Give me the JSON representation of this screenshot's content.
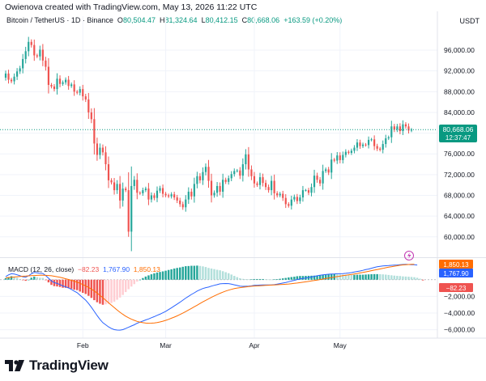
{
  "header": {
    "credit": "Owienova created with TradingView.com, May 13, 2026 11:22 UTC",
    "symbol": "Bitcoin / TetherUS · 1D · Binance",
    "o_label": "O",
    "o": "80,504.47",
    "h_label": "H",
    "h": "81,324.64",
    "l_label": "L",
    "l": "80,412.15",
    "c_label": "C",
    "c": "80,668.06",
    "change": "+163.59 (+0.20%)",
    "currency": "USDT"
  },
  "price_badge": {
    "price": "80,668.06",
    "countdown": "12:37:47"
  },
  "macd_legend": {
    "name": "MACD (12, 26, close)",
    "hist": "−82.23",
    "macd": "1,767.90",
    "signal": "1,850.13"
  },
  "macd_badges": {
    "signal": "1,850.13",
    "macd": "1,767.90",
    "hist": "−82.23"
  },
  "footer": {
    "brand": "TradingView"
  },
  "colors": {
    "up": "#26a69a",
    "down": "#ef5350",
    "macd": "#2962ff",
    "signal": "#ff6d00",
    "grid": "#f0f3fa",
    "last_price": "#089981"
  },
  "chart_data": [
    {
      "type": "candlestick",
      "title": "Bitcoin / TetherUS · 1D · Binance",
      "x_labels": [
        "Feb",
        "Mar",
        "Apr",
        "May"
      ],
      "ylim": [
        57000,
        101000
      ],
      "y_ticks": [
        60000,
        64000,
        68000,
        72000,
        76000,
        80000,
        84000,
        88000,
        92000,
        96000
      ],
      "y_tick_labels": [
        "60,000.00",
        "64,000.00",
        "68,000.00",
        "72,000.00",
        "76,000.00",
        "80,000.00",
        "84,000.00",
        "88,000.00",
        "92,000.00",
        "96,000.00"
      ],
      "last_price": 80668.06,
      "grid": true,
      "close": [
        91500,
        90300,
        90000,
        90900,
        91900,
        92500,
        94300,
        95800,
        97600,
        97000,
        95000,
        94800,
        96100,
        94000,
        92800,
        89300,
        89000,
        88500,
        90500,
        89500,
        89800,
        90300,
        89100,
        89400,
        88000,
        87800,
        88500,
        87100,
        86500,
        84000,
        82700,
        78000,
        75800,
        77200,
        76300,
        74000,
        70900,
        70500,
        69000,
        70200,
        67000,
        69300,
        69000,
        61000,
        69800,
        71000,
        68500,
        68400,
        69000,
        69300,
        67200,
        68000,
        67500,
        68900,
        69400,
        68300,
        68000,
        67800,
        68200,
        67600,
        67000,
        66300,
        65700,
        67200,
        68700,
        67800,
        70200,
        71700,
        70900,
        72500,
        73500,
        70800,
        68000,
        68500,
        69800,
        68700,
        71000,
        70600,
        71300,
        72100,
        72700,
        72800,
        71800,
        74000,
        75900,
        73000,
        71700,
        70300,
        70000,
        71500,
        70400,
        69600,
        69000,
        70800,
        68400,
        68000,
        68300,
        67500,
        66300,
        66000,
        67200,
        67700,
        66900,
        67600,
        69000,
        69000,
        68500,
        69600,
        71800,
        71000,
        70300,
        72700,
        73000,
        72400,
        74900,
        74700,
        75700,
        74800,
        75800,
        76400,
        76200,
        76600,
        77200,
        78200,
        77500,
        77800,
        77700,
        78700,
        78800,
        77500,
        77000,
        76800,
        77900,
        79000,
        79200,
        81300,
        80700,
        81300,
        80400,
        81700,
        81300,
        80500,
        80668
      ]
    },
    {
      "type": "line",
      "title": "MACD (12, 26, close)",
      "ylim": [
        -7000,
        2500
      ],
      "y_ticks": [
        -6000,
        -4000,
        -2000
      ],
      "y_tick_labels": [
        "−6,000.00",
        "−4,000.00",
        "−2,000.00"
      ],
      "grid": true,
      "series": [
        {
          "name": "MACD",
          "values": [
            380,
            580,
            720,
            680,
            590,
            470,
            360,
            310,
            460,
            720,
            870,
            820,
            760,
            750,
            500,
            180,
            -150,
            -350,
            -450,
            -580,
            -750,
            -850,
            -980,
            -1150,
            -1380,
            -1550,
            -1850,
            -2150,
            -2450,
            -2850,
            -3300,
            -3800,
            -4300,
            -4750,
            -5150,
            -5400,
            -5650,
            -5850,
            -5980,
            -6030,
            -6040,
            -5980,
            -5850,
            -5700,
            -5550,
            -5400,
            -5220,
            -5080,
            -4950,
            -4820,
            -4700,
            -4560,
            -4420,
            -4270,
            -4130,
            -3970,
            -3790,
            -3580,
            -3370,
            -3140,
            -2920,
            -2700,
            -2450,
            -2200,
            -1990,
            -1770,
            -1570,
            -1360,
            -1200,
            -1060,
            -950,
            -880,
            -770,
            -670,
            -590,
            -500,
            -470,
            -460,
            -470,
            -530,
            -610,
            -690,
            -770,
            -800,
            -790,
            -780,
            -740,
            -680,
            -660,
            -640,
            -620,
            -620,
            -630,
            -620,
            -590,
            -530,
            -470,
            -400,
            -330,
            -240,
            -160,
            -80,
            20,
            100,
            150,
            210,
            270,
            330,
            400,
            470,
            540,
            580,
            620,
            660,
            690,
            700,
            720,
            720,
            740,
            760,
            800,
            850,
            920,
            990,
            1050,
            1120,
            1210,
            1280,
            1380,
            1470,
            1550,
            1610,
            1650,
            1680,
            1700,
            1720,
            1740,
            1760,
            1790,
            1820,
            1840,
            1820,
            1800,
            1790,
            1768
          ]
        },
        {
          "name": "Signal",
          "values": [
            210,
            260,
            300,
            330,
            360,
            390,
            420,
            440,
            460,
            480,
            500,
            520,
            530,
            530,
            520,
            500,
            470,
            420,
            360,
            290,
            210,
            120,
            30,
            -70,
            -180,
            -300,
            -430,
            -580,
            -740,
            -920,
            -1120,
            -1350,
            -1600,
            -1870,
            -2150,
            -2450,
            -2750,
            -3050,
            -3350,
            -3630,
            -3900,
            -4150,
            -4370,
            -4560,
            -4730,
            -4870,
            -4990,
            -5080,
            -5150,
            -5200,
            -5220,
            -5210,
            -5180,
            -5130,
            -5060,
            -4970,
            -4870,
            -4750,
            -4620,
            -4480,
            -4330,
            -4170,
            -4000,
            -3820,
            -3630,
            -3440,
            -3240,
            -3050,
            -2850,
            -2660,
            -2470,
            -2290,
            -2110,
            -1940,
            -1780,
            -1630,
            -1490,
            -1360,
            -1250,
            -1150,
            -1070,
            -1000,
            -950,
            -900,
            -860,
            -820,
            -790,
            -760,
            -740,
            -720,
            -700,
            -680,
            -660,
            -640,
            -620,
            -600,
            -580,
            -560,
            -540,
            -510,
            -480,
            -440,
            -400,
            -350,
            -300,
            -250,
            -200,
            -150,
            -100,
            -40,
            20,
            80,
            140,
            200,
            260,
            320,
            380,
            430,
            480,
            530,
            580,
            630,
            690,
            750,
            810,
            870,
            940,
            1010,
            1080,
            1150,
            1220,
            1290,
            1360,
            1430,
            1500,
            1560,
            1620,
            1680,
            1730,
            1770,
            1800,
            1820,
            1840,
            1850
          ]
        }
      ],
      "histogram": [
        170,
        320,
        420,
        350,
        230,
        80,
        -60,
        -130,
        0,
        240,
        370,
        300,
        230,
        220,
        -20,
        -320,
        -620,
        -770,
        -810,
        -870,
        -960,
        -970,
        -1010,
        -1080,
        -1200,
        -1250,
        -1420,
        -1570,
        -1710,
        -1930,
        -2180,
        -2450,
        -2700,
        -2880,
        -3000,
        -2950,
        -2900,
        -2800,
        -2630,
        -2400,
        -2140,
        -1830,
        -1480,
        -1140,
        -820,
        -530,
        -230,
        0,
        200,
        380,
        520,
        650,
        760,
        860,
        930,
        1000,
        1080,
        1170,
        1250,
        1340,
        1410,
        1470,
        1550,
        1620,
        1640,
        1670,
        1670,
        1690,
        1650,
        1600,
        1520,
        1410,
        1340,
        1270,
        1190,
        1130,
        1020,
        900,
        780,
        620,
        460,
        310,
        180,
        100,
        70,
        40,
        50,
        80,
        80,
        80,
        80,
        60,
        30,
        20,
        50,
        70,
        110,
        160,
        210,
        270,
        320,
        360,
        420,
        450,
        450,
        460,
        470,
        480,
        490,
        510,
        530,
        580,
        620,
        650,
        660,
        660,
        640,
        620,
        600,
        590,
        580,
        570,
        580,
        590,
        600,
        600,
        620,
        640,
        660,
        670,
        670,
        660,
        640,
        610,
        570,
        530,
        490,
        460,
        440,
        400,
        380,
        360,
        330,
        300,
        230,
        120,
        -82
      ]
    }
  ]
}
